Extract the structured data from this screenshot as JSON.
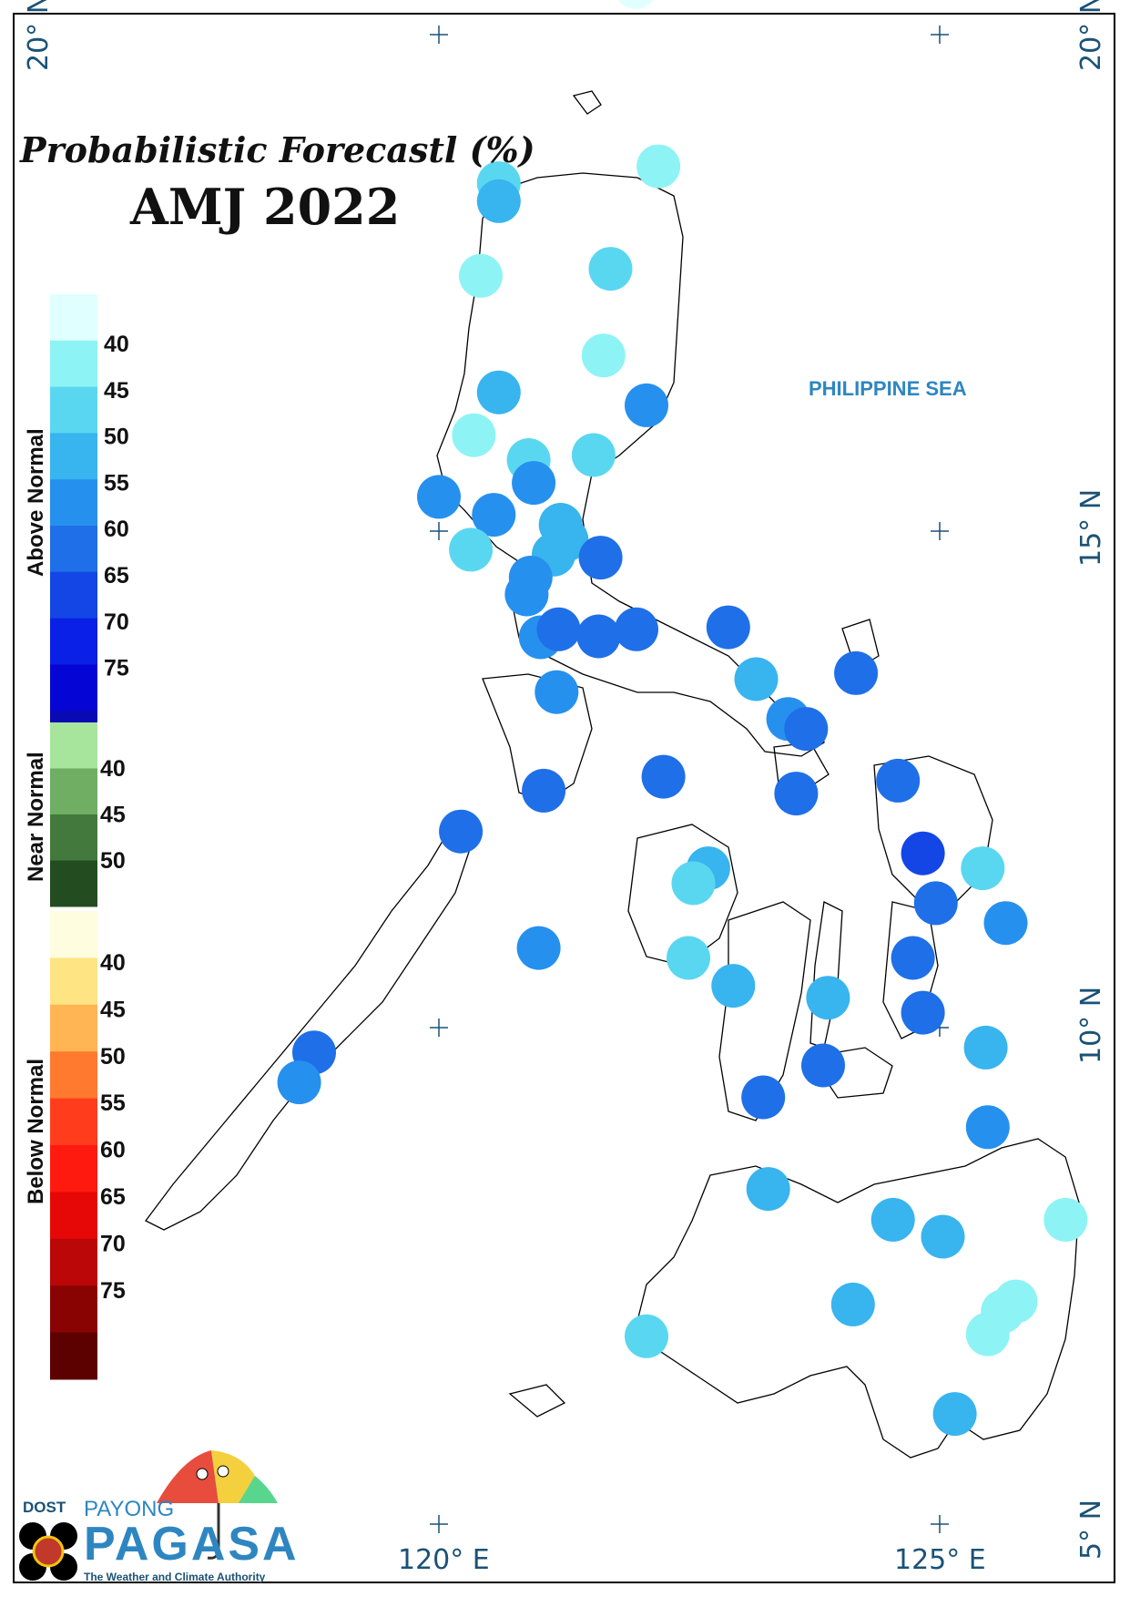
{
  "map": {
    "title_line1": "Probabilistic Forecastl (%)",
    "title_line2": "AMJ 2022",
    "sea_label": "PHILIPPINE SEA",
    "coords": {
      "lat_20_left": "20° N",
      "lat_20_right": "20° N",
      "lat_15": "15° N",
      "lat_10": "10° N",
      "lat_5": "5° N",
      "lon_120": "120° E",
      "lon_125": "125° E"
    }
  },
  "legend": {
    "above": {
      "label": "Above Normal",
      "colors": [
        "#e0ffff",
        "#8ef3f5",
        "#5ad7f0",
        "#38b4ef",
        "#2690ef",
        "#1f6fe8",
        "#1446e6",
        "#0a20e6",
        "#0505d6",
        "#0a0ab5"
      ],
      "ticks": [
        "40",
        "45",
        "50",
        "55",
        "60",
        "65",
        "70",
        "75"
      ]
    },
    "near": {
      "label": "Near Normal",
      "colors": [
        "#a6e59b",
        "#6fae63",
        "#43793d",
        "#234d21"
      ],
      "ticks": [
        "40",
        "45",
        "50"
      ]
    },
    "below": {
      "label": "Below Normal",
      "colors": [
        "#fffde0",
        "#ffe484",
        "#ffb554",
        "#ff7a2e",
        "#ff3d1d",
        "#ff1a10",
        "#e60707",
        "#bb0707",
        "#8a0303",
        "#5c0000"
      ],
      "ticks": [
        "40",
        "45",
        "50",
        "55",
        "60",
        "65",
        "70",
        "75"
      ]
    }
  },
  "stations": [
    {
      "lon": 121.97,
      "lat": 20.45,
      "color": "#e0ffff"
    },
    {
      "lon": 122.2,
      "lat": 18.65,
      "color": "#8ef3f5"
    },
    {
      "lon": 120.6,
      "lat": 18.48,
      "color": "#5ad7f0"
    },
    {
      "lon": 120.6,
      "lat": 18.3,
      "color": "#38b4ef"
    },
    {
      "lon": 120.42,
      "lat": 17.55,
      "color": "#8ef3f5"
    },
    {
      "lon": 121.72,
      "lat": 17.62,
      "color": "#5ad7f0"
    },
    {
      "lon": 121.65,
      "lat": 16.75,
      "color": "#8ef3f5"
    },
    {
      "lon": 120.6,
      "lat": 16.38,
      "color": "#38b4ef"
    },
    {
      "lon": 122.08,
      "lat": 16.25,
      "color": "#2690ef"
    },
    {
      "lon": 120.35,
      "lat": 15.95,
      "color": "#8ef3f5"
    },
    {
      "lon": 120.9,
      "lat": 15.7,
      "color": "#5ad7f0"
    },
    {
      "lon": 121.55,
      "lat": 15.75,
      "color": "#5ad7f0"
    },
    {
      "lon": 120.95,
      "lat": 15.47,
      "color": "#2690ef"
    },
    {
      "lon": 120.0,
      "lat": 15.33,
      "color": "#2690ef"
    },
    {
      "lon": 120.55,
      "lat": 15.15,
      "color": "#2690ef"
    },
    {
      "lon": 121.22,
      "lat": 15.05,
      "color": "#38b4ef"
    },
    {
      "lon": 121.28,
      "lat": 14.9,
      "color": "#38b4ef"
    },
    {
      "lon": 121.15,
      "lat": 14.75,
      "color": "#38b4ef"
    },
    {
      "lon": 120.32,
      "lat": 14.8,
      "color": "#5ad7f0"
    },
    {
      "lon": 121.62,
      "lat": 14.72,
      "color": "#1f6fe8"
    },
    {
      "lon": 120.92,
      "lat": 14.52,
      "color": "#2690ef"
    },
    {
      "lon": 120.88,
      "lat": 14.35,
      "color": "#2690ef"
    },
    {
      "lon": 121.02,
      "lat": 13.92,
      "color": "#2690ef"
    },
    {
      "lon": 121.2,
      "lat": 14.0,
      "color": "#1f6fe8"
    },
    {
      "lon": 121.6,
      "lat": 13.93,
      "color": "#1f6fe8"
    },
    {
      "lon": 121.98,
      "lat": 14.0,
      "color": "#1f6fe8"
    },
    {
      "lon": 122.9,
      "lat": 14.02,
      "color": "#1f6fe8"
    },
    {
      "lon": 124.18,
      "lat": 13.56,
      "color": "#1f6fe8"
    },
    {
      "lon": 123.18,
      "lat": 13.5,
      "color": "#38b4ef"
    },
    {
      "lon": 121.18,
      "lat": 13.37,
      "color": "#2690ef"
    },
    {
      "lon": 123.5,
      "lat": 13.1,
      "color": "#2690ef"
    },
    {
      "lon": 123.68,
      "lat": 13.0,
      "color": "#1f6fe8"
    },
    {
      "lon": 122.25,
      "lat": 12.52,
      "color": "#1f6fe8"
    },
    {
      "lon": 124.6,
      "lat": 12.48,
      "color": "#1f6fe8"
    },
    {
      "lon": 121.05,
      "lat": 12.38,
      "color": "#1f6fe8"
    },
    {
      "lon": 123.58,
      "lat": 12.35,
      "color": "#1f6fe8"
    },
    {
      "lon": 120.22,
      "lat": 11.97,
      "color": "#1f6fe8"
    },
    {
      "lon": 124.85,
      "lat": 11.75,
      "color": "#1446e6"
    },
    {
      "lon": 125.45,
      "lat": 11.6,
      "color": "#5ad7f0"
    },
    {
      "lon": 122.7,
      "lat": 11.6,
      "color": "#38b4ef"
    },
    {
      "lon": 122.55,
      "lat": 11.45,
      "color": "#5ad7f0"
    },
    {
      "lon": 124.98,
      "lat": 11.25,
      "color": "#1f6fe8"
    },
    {
      "lon": 125.68,
      "lat": 11.05,
      "color": "#2690ef"
    },
    {
      "lon": 121.0,
      "lat": 10.8,
      "color": "#2690ef"
    },
    {
      "lon": 124.75,
      "lat": 10.7,
      "color": "#1f6fe8"
    },
    {
      "lon": 122.5,
      "lat": 10.7,
      "color": "#5ad7f0"
    },
    {
      "lon": 122.95,
      "lat": 10.42,
      "color": "#38b4ef"
    },
    {
      "lon": 123.9,
      "lat": 10.3,
      "color": "#38b4ef"
    },
    {
      "lon": 124.85,
      "lat": 10.15,
      "color": "#1f6fe8"
    },
    {
      "lon": 125.48,
      "lat": 9.8,
      "color": "#38b4ef"
    },
    {
      "lon": 118.75,
      "lat": 9.75,
      "color": "#1f6fe8"
    },
    {
      "lon": 118.6,
      "lat": 9.45,
      "color": "#2690ef"
    },
    {
      "lon": 123.85,
      "lat": 9.62,
      "color": "#1f6fe8"
    },
    {
      "lon": 123.25,
      "lat": 9.3,
      "color": "#1f6fe8"
    },
    {
      "lon": 125.5,
      "lat": 9.0,
      "color": "#2690ef"
    },
    {
      "lon": 123.3,
      "lat": 8.38,
      "color": "#38b4ef"
    },
    {
      "lon": 124.55,
      "lat": 8.07,
      "color": "#38b4ef"
    },
    {
      "lon": 125.05,
      "lat": 7.9,
      "color": "#38b4ef"
    },
    {
      "lon": 126.28,
      "lat": 8.07,
      "color": "#8ef3f5"
    },
    {
      "lon": 124.15,
      "lat": 7.22,
      "color": "#38b4ef"
    },
    {
      "lon": 125.78,
      "lat": 7.25,
      "color": "#8ef3f5"
    },
    {
      "lon": 125.65,
      "lat": 7.15,
      "color": "#8ef3f5"
    },
    {
      "lon": 125.5,
      "lat": 6.92,
      "color": "#8ef3f5"
    },
    {
      "lon": 122.08,
      "lat": 6.9,
      "color": "#5ad7f0"
    },
    {
      "lon": 125.17,
      "lat": 6.12,
      "color": "#38b4ef"
    }
  ]
}
